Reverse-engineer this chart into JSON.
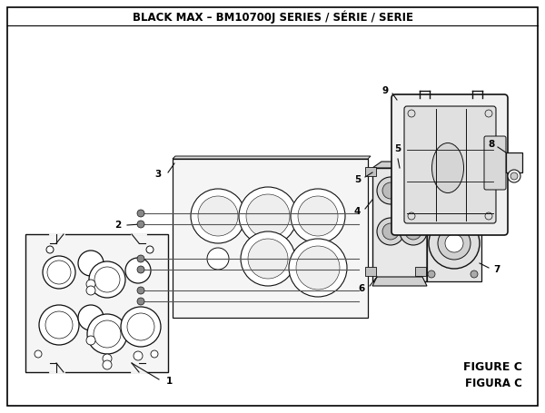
{
  "title": "BLACK MAX – BM10700J SERIES / SÉRIE / SERIE",
  "figure_label": "FIGURE C",
  "figura_label": "FIGURA C",
  "bg_color": "#ffffff",
  "line_color": "#000000",
  "part_fill": "#f5f5f5",
  "part_edge": "#111111",
  "title_fontsize": 8.5,
  "label_fontsize": 7.5,
  "figure_fontsize": 9
}
